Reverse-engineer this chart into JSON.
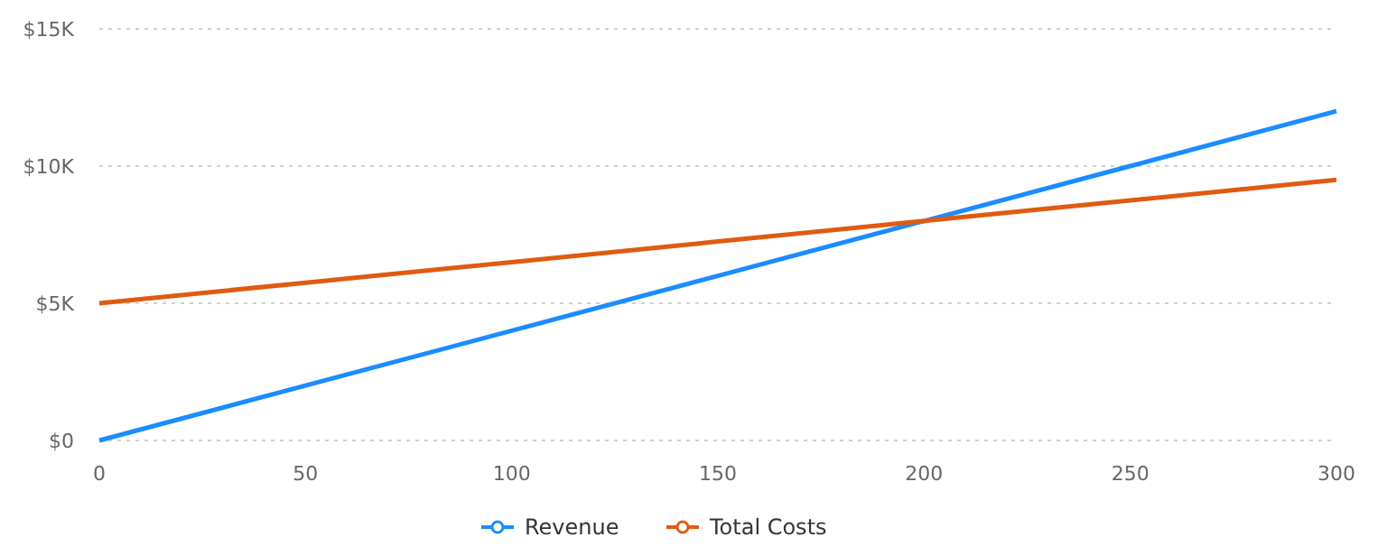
{
  "chart_data": {
    "type": "line",
    "x": [
      0,
      50,
      100,
      150,
      200,
      250,
      300
    ],
    "series": [
      {
        "name": "Revenue",
        "color": "#1a8cff",
        "values": [
          0,
          2000,
          4000,
          6000,
          8000,
          10000,
          12000
        ]
      },
      {
        "name": "Total Costs",
        "color": "#e05a10",
        "values": [
          5000,
          5750,
          6500,
          7250,
          8000,
          8750,
          9500
        ]
      }
    ],
    "xlim": [
      0,
      300
    ],
    "xticks": [
      0,
      50,
      100,
      150,
      200,
      250,
      300
    ],
    "ylim": [
      0,
      15000
    ],
    "yticks": [
      {
        "value": 0,
        "label": "$0"
      },
      {
        "value": 5000,
        "label": "$5K"
      },
      {
        "value": 10000,
        "label": "$10K"
      },
      {
        "value": 15000,
        "label": "$15K"
      }
    ],
    "grid": "y",
    "legend": "bottom"
  }
}
